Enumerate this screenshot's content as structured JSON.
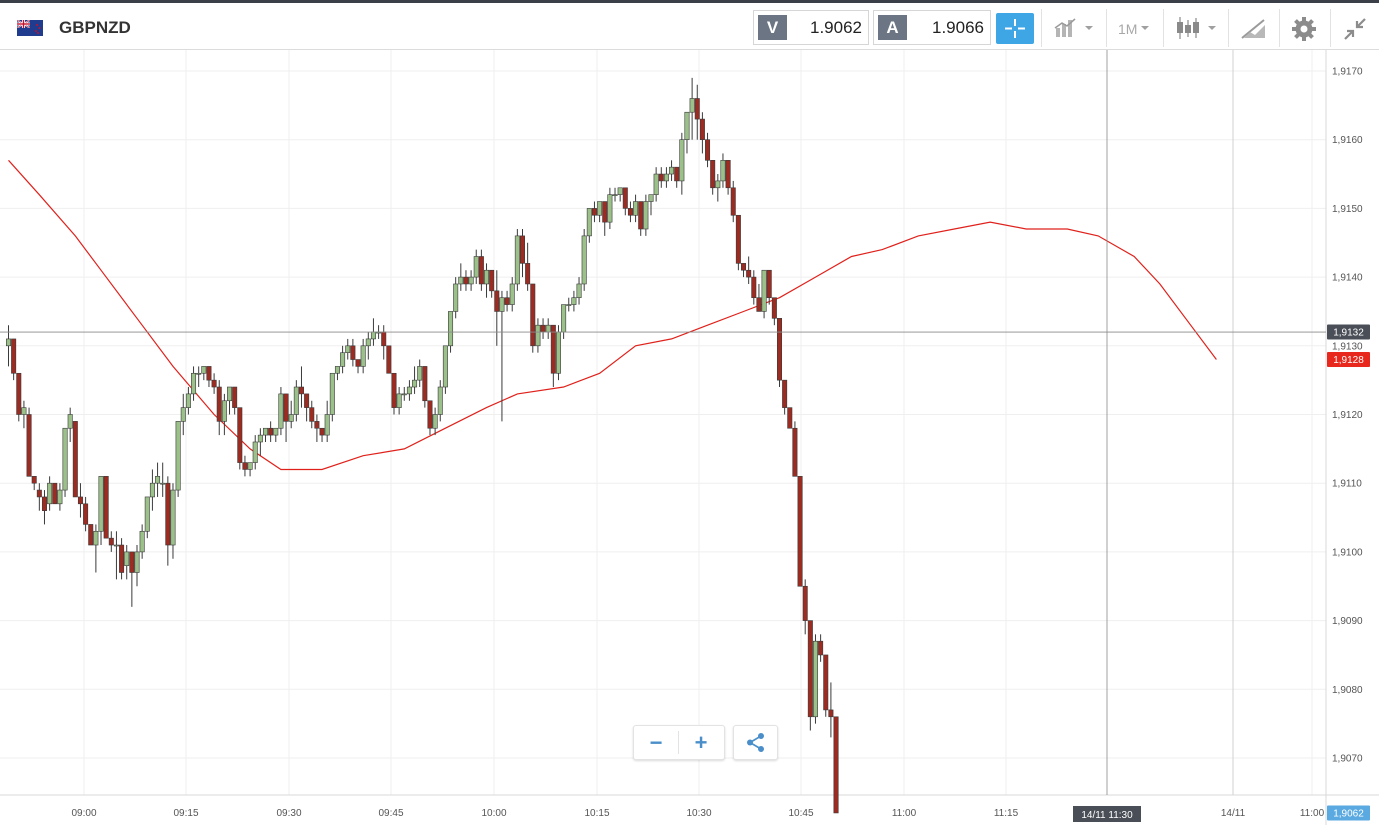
{
  "header": {
    "symbol": "GBPNZD",
    "sell_label": "V",
    "sell_price": "1.9062",
    "buy_label": "A",
    "buy_price": "1.9066",
    "timeframe": "1M",
    "icons": [
      "flag-icon",
      "crosshair-icon",
      "chart-type-icon",
      "candles-icon",
      "draw-icon",
      "settings-icon",
      "collapse-icon"
    ]
  },
  "colors": {
    "up": "#9bc089",
    "down": "#9c2b22",
    "ma": "#e0211b",
    "price_tag": "#e8281c",
    "crosshair_tag": "#4a4f57",
    "current_tag": "#5aa9e0",
    "accent": "#3fa6e6"
  },
  "controls": {
    "zoom_out": "−",
    "zoom_in": "+"
  },
  "chart_data": {
    "type": "candlestick",
    "interval_minutes": 1,
    "y_tick_labels": [
      "1,9170",
      "1,9160",
      "1,9150",
      "1,9140",
      "1,9130",
      "1,9120",
      "1,9110",
      "1,9100",
      "1,9090",
      "1,9080",
      "1,9070"
    ],
    "y_ticks": [
      1.917,
      1.916,
      1.915,
      1.914,
      1.913,
      1.912,
      1.911,
      1.91,
      1.909,
      1.908,
      1.907
    ],
    "ylim": [
      1.90635,
      1.91735
    ],
    "x_tick_labels": [
      "09:00",
      "09:15",
      "09:30",
      "09:45",
      "10:00",
      "10:15",
      "10:30",
      "10:45",
      "11:00",
      "11:15",
      "14/11",
      "11:00"
    ],
    "crosshair": {
      "price_label": "1,9132",
      "price": 1.9132,
      "time_label": "14/11 11:30"
    },
    "ma_label": "1,9128",
    "last_price_label": "1,9062",
    "candles": [
      [
        1.913,
        1.9133,
        1.9127,
        1.9131
      ],
      [
        1.9131,
        1.9131,
        1.9125,
        1.9126
      ],
      [
        1.9126,
        1.9126,
        1.9119,
        1.912
      ],
      [
        1.912,
        1.9122,
        1.9118,
        1.9121
      ],
      [
        1.912,
        1.9121,
        1.9111,
        1.9111
      ],
      [
        1.9111,
        1.9111,
        1.9109,
        1.911
      ],
      [
        1.9109,
        1.911,
        1.9106,
        1.9108
      ],
      [
        1.9108,
        1.9109,
        1.9104,
        1.9106
      ],
      [
        1.9107,
        1.9111,
        1.9106,
        1.911
      ],
      [
        1.911,
        1.911,
        1.9107,
        1.9107
      ],
      [
        1.9107,
        1.911,
        1.9106,
        1.9109
      ],
      [
        1.9109,
        1.9118,
        1.9108,
        1.9118
      ],
      [
        1.9118,
        1.9121,
        1.9116,
        1.912
      ],
      [
        1.9119,
        1.9119,
        1.9108,
        1.9108
      ],
      [
        1.9108,
        1.911,
        1.9105,
        1.9107
      ],
      [
        1.9107,
        1.9108,
        1.9103,
        1.9104
      ],
      [
        1.9104,
        1.9104,
        1.9101,
        1.9101
      ],
      [
        1.9101,
        1.9104,
        1.9097,
        1.9103
      ],
      [
        1.9103,
        1.9111,
        1.9101,
        1.9111
      ],
      [
        1.9111,
        1.9111,
        1.9102,
        1.9102
      ],
      [
        1.9102,
        1.9103,
        1.91,
        1.9101
      ],
      [
        1.9101,
        1.9103,
        1.9096,
        1.9101
      ],
      [
        1.9101,
        1.9102,
        1.9096,
        1.9097
      ],
      [
        1.9098,
        1.9101,
        1.9096,
        1.91
      ],
      [
        1.91,
        1.91,
        1.9092,
        1.9097
      ],
      [
        1.9097,
        1.9101,
        1.9095,
        1.91
      ],
      [
        1.91,
        1.9104,
        1.9099,
        1.9103
      ],
      [
        1.9103,
        1.9108,
        1.9102,
        1.9108
      ],
      [
        1.9108,
        1.9112,
        1.9106,
        1.911
      ],
      [
        1.911,
        1.9113,
        1.9108,
        1.9111
      ],
      [
        1.911,
        1.9113,
        1.9108,
        1.911
      ],
      [
        1.911,
        1.9111,
        1.9098,
        1.9101
      ],
      [
        1.9101,
        1.911,
        1.9099,
        1.9109
      ],
      [
        1.9109,
        1.9119,
        1.9108,
        1.9119
      ],
      [
        1.9119,
        1.9123,
        1.9117,
        1.9121
      ],
      [
        1.9121,
        1.9124,
        1.912,
        1.9123
      ],
      [
        1.9123,
        1.9127,
        1.9122,
        1.9126
      ],
      [
        1.9126,
        1.9127,
        1.9124,
        1.9126
      ],
      [
        1.9126,
        1.9127,
        1.9125,
        1.9127
      ],
      [
        1.9127,
        1.9127,
        1.9124,
        1.9125
      ],
      [
        1.9125,
        1.9126,
        1.9123,
        1.9124
      ],
      [
        1.9124,
        1.9125,
        1.9117,
        1.9119
      ],
      [
        1.9119,
        1.9123,
        1.9117,
        1.9122
      ],
      [
        1.9122,
        1.9124,
        1.912,
        1.9124
      ],
      [
        1.9124,
        1.9124,
        1.912,
        1.9121
      ],
      [
        1.9121,
        1.9121,
        1.9112,
        1.9113
      ],
      [
        1.9113,
        1.9114,
        1.9111,
        1.9112
      ],
      [
        1.9112,
        1.9113,
        1.9111,
        1.9113
      ],
      [
        1.9113,
        1.9117,
        1.9112,
        1.9116
      ],
      [
        1.9116,
        1.9118,
        1.9114,
        1.9117
      ],
      [
        1.9117,
        1.9118,
        1.9116,
        1.9118
      ],
      [
        1.9118,
        1.9119,
        1.9116,
        1.9117
      ],
      [
        1.9117,
        1.9118,
        1.9116,
        1.9118
      ],
      [
        1.9118,
        1.9124,
        1.9117,
        1.9123
      ],
      [
        1.9123,
        1.9123,
        1.9116,
        1.9119
      ],
      [
        1.9119,
        1.9122,
        1.9118,
        1.912
      ],
      [
        1.912,
        1.9125,
        1.9119,
        1.9124
      ],
      [
        1.9124,
        1.9127,
        1.9121,
        1.9123
      ],
      [
        1.9123,
        1.9123,
        1.9119,
        1.9121
      ],
      [
        1.9121,
        1.9122,
        1.9118,
        1.9119
      ],
      [
        1.9119,
        1.912,
        1.9116,
        1.9118
      ],
      [
        1.9118,
        1.9118,
        1.9116,
        1.9117
      ],
      [
        1.9117,
        1.9122,
        1.9116,
        1.912
      ],
      [
        1.912,
        1.9126,
        1.9119,
        1.9126
      ],
      [
        1.9126,
        1.9127,
        1.9125,
        1.9127
      ],
      [
        1.9127,
        1.913,
        1.9126,
        1.9129
      ],
      [
        1.9129,
        1.9131,
        1.9128,
        1.913
      ],
      [
        1.913,
        1.9131,
        1.9127,
        1.9128
      ],
      [
        1.9128,
        1.9128,
        1.9126,
        1.9127
      ],
      [
        1.9127,
        1.9131,
        1.9126,
        1.913
      ],
      [
        1.913,
        1.9132,
        1.9128,
        1.9131
      ],
      [
        1.9131,
        1.9134,
        1.913,
        1.9132
      ],
      [
        1.9132,
        1.9133,
        1.9131,
        1.9132
      ],
      [
        1.9132,
        1.9133,
        1.9128,
        1.913
      ],
      [
        1.913,
        1.913,
        1.9126,
        1.9126
      ],
      [
        1.9126,
        1.9126,
        1.912,
        1.9121
      ],
      [
        1.9121,
        1.9124,
        1.912,
        1.9123
      ],
      [
        1.9123,
        1.9124,
        1.9122,
        1.9123
      ],
      [
        1.9123,
        1.9125,
        1.9122,
        1.9124
      ],
      [
        1.9124,
        1.9127,
        1.9123,
        1.9125
      ],
      [
        1.9125,
        1.9128,
        1.9124,
        1.9127
      ],
      [
        1.9127,
        1.9127,
        1.9121,
        1.9122
      ],
      [
        1.9122,
        1.9122,
        1.9117,
        1.9118
      ],
      [
        1.9118,
        1.9121,
        1.9117,
        1.912
      ],
      [
        1.912,
        1.9125,
        1.9119,
        1.9124
      ],
      [
        1.9124,
        1.913,
        1.9123,
        1.913
      ],
      [
        1.913,
        1.9135,
        1.9129,
        1.9135
      ],
      [
        1.9135,
        1.914,
        1.9134,
        1.9139
      ],
      [
        1.9139,
        1.9142,
        1.9138,
        1.914
      ],
      [
        1.914,
        1.9141,
        1.9138,
        1.9139
      ],
      [
        1.9139,
        1.9141,
        1.9138,
        1.914
      ],
      [
        1.914,
        1.9144,
        1.9139,
        1.9143
      ],
      [
        1.9143,
        1.9144,
        1.9138,
        1.9139
      ],
      [
        1.9139,
        1.9142,
        1.9137,
        1.9141
      ],
      [
        1.9141,
        1.9141,
        1.9137,
        1.9138
      ],
      [
        1.9138,
        1.9141,
        1.913,
        1.9135
      ],
      [
        1.9135,
        1.9138,
        1.9119,
        1.9137
      ],
      [
        1.9137,
        1.9138,
        1.9135,
        1.9136
      ],
      [
        1.9136,
        1.914,
        1.9135,
        1.9139
      ],
      [
        1.9139,
        1.9147,
        1.9138,
        1.9146
      ],
      [
        1.9146,
        1.9147,
        1.914,
        1.9142
      ],
      [
        1.9142,
        1.9145,
        1.9138,
        1.9139
      ],
      [
        1.9139,
        1.9139,
        1.9129,
        1.913
      ],
      [
        1.913,
        1.9134,
        1.9129,
        1.9133
      ],
      [
        1.9133,
        1.9134,
        1.9131,
        1.9132
      ],
      [
        1.9132,
        1.9134,
        1.9131,
        1.9133
      ],
      [
        1.9133,
        1.9133,
        1.9124,
        1.9126
      ],
      [
        1.9126,
        1.9133,
        1.9125,
        1.9132
      ],
      [
        1.9132,
        1.9136,
        1.9131,
        1.9136
      ],
      [
        1.9136,
        1.9137,
        1.9135,
        1.9136
      ],
      [
        1.9136,
        1.9138,
        1.9135,
        1.9137
      ],
      [
        1.9137,
        1.914,
        1.9136,
        1.9139
      ],
      [
        1.9139,
        1.9147,
        1.9138,
        1.9146
      ],
      [
        1.9146,
        1.915,
        1.9145,
        1.915
      ],
      [
        1.915,
        1.9151,
        1.9148,
        1.9149
      ],
      [
        1.9149,
        1.9151,
        1.9148,
        1.9151
      ],
      [
        1.9151,
        1.9151,
        1.9146,
        1.9148
      ],
      [
        1.9148,
        1.9153,
        1.9147,
        1.9152
      ],
      [
        1.9152,
        1.9153,
        1.9151,
        1.9152
      ],
      [
        1.9152,
        1.9153,
        1.9151,
        1.9153
      ],
      [
        1.9153,
        1.9153,
        1.9149,
        1.915
      ],
      [
        1.915,
        1.9151,
        1.9148,
        1.9149
      ],
      [
        1.9149,
        1.9152,
        1.9148,
        1.9151
      ],
      [
        1.9151,
        1.9151,
        1.9146,
        1.9147
      ],
      [
        1.9147,
        1.9152,
        1.9146,
        1.9151
      ],
      [
        1.9151,
        1.9152,
        1.9149,
        1.9152
      ],
      [
        1.9152,
        1.9156,
        1.9151,
        1.9155
      ],
      [
        1.9155,
        1.9156,
        1.9153,
        1.9154
      ],
      [
        1.9154,
        1.9156,
        1.9153,
        1.9155
      ],
      [
        1.9155,
        1.9157,
        1.9154,
        1.9156
      ],
      [
        1.9156,
        1.9156,
        1.9153,
        1.9154
      ],
      [
        1.9154,
        1.9161,
        1.9152,
        1.916
      ],
      [
        1.916,
        1.9164,
        1.9158,
        1.9164
      ],
      [
        1.9164,
        1.9169,
        1.916,
        1.9166
      ],
      [
        1.9166,
        1.9168,
        1.916,
        1.9163
      ],
      [
        1.9163,
        1.9164,
        1.9158,
        1.916
      ],
      [
        1.916,
        1.9161,
        1.9156,
        1.9157
      ],
      [
        1.9157,
        1.9157,
        1.9152,
        1.9153
      ],
      [
        1.9153,
        1.9155,
        1.9151,
        1.9154
      ],
      [
        1.9154,
        1.9158,
        1.9153,
        1.9157
      ],
      [
        1.9157,
        1.9157,
        1.9152,
        1.9153
      ],
      [
        1.9153,
        1.9154,
        1.9148,
        1.9149
      ],
      [
        1.9149,
        1.9149,
        1.9141,
        1.9142
      ],
      [
        1.9142,
        1.9142,
        1.914,
        1.9141
      ],
      [
        1.9141,
        1.9143,
        1.9139,
        1.914
      ],
      [
        1.914,
        1.9141,
        1.9136,
        1.9137
      ],
      [
        1.9137,
        1.9139,
        1.9135,
        1.9135
      ],
      [
        1.9135,
        1.9141,
        1.9134,
        1.9141
      ],
      [
        1.9141,
        1.9141,
        1.9136,
        1.9137
      ],
      [
        1.9137,
        1.9137,
        1.9133,
        1.9134
      ],
      [
        1.9134,
        1.9134,
        1.9124,
        1.9125
      ],
      [
        1.9125,
        1.9125,
        1.912,
        1.9121
      ],
      [
        1.9121,
        1.9121,
        1.9118,
        1.9118
      ],
      [
        1.9118,
        1.9119,
        1.9111,
        1.9111
      ],
      [
        1.9111,
        1.9111,
        1.9095,
        1.9095
      ],
      [
        1.9095,
        1.9096,
        1.9088,
        1.909
      ],
      [
        1.909,
        1.909,
        1.9074,
        1.9076
      ],
      [
        1.9076,
        1.9088,
        1.9075,
        1.9087
      ],
      [
        1.9087,
        1.9088,
        1.9084,
        1.9085
      ],
      [
        1.9085,
        1.9085,
        1.9076,
        1.9077
      ],
      [
        1.9077,
        1.9081,
        1.9073,
        1.9076
      ],
      [
        1.9076,
        1.9076,
        1.9062,
        1.9062
      ]
    ],
    "ma": [
      [
        0,
        1.9157
      ],
      [
        6,
        1.9152
      ],
      [
        13,
        1.9146
      ],
      [
        18,
        1.9141
      ],
      [
        25,
        1.9134
      ],
      [
        32,
        1.9127
      ],
      [
        40,
        1.912
      ],
      [
        47,
        1.9115
      ],
      [
        53,
        1.9112
      ],
      [
        61,
        1.9112
      ],
      [
        69,
        1.9114
      ],
      [
        77,
        1.9115
      ],
      [
        85,
        1.9118
      ],
      [
        93,
        1.9121
      ],
      [
        99,
        1.9123
      ],
      [
        108,
        1.9124
      ],
      [
        115,
        1.9126
      ],
      [
        122,
        1.913
      ],
      [
        129,
        1.9131
      ],
      [
        136,
        1.9133
      ],
      [
        143,
        1.9135
      ],
      [
        150,
        1.9137
      ],
      [
        157,
        1.914
      ],
      [
        164,
        1.9143
      ],
      [
        170,
        1.9144
      ],
      [
        177,
        1.9146
      ],
      [
        184,
        1.9147
      ],
      [
        191,
        1.9148
      ],
      [
        198,
        1.9147
      ],
      [
        206,
        1.9147
      ],
      [
        212,
        1.9146
      ],
      [
        219,
        1.9143
      ],
      [
        224,
        1.9139
      ],
      [
        230,
        1.9133
      ],
      [
        235,
        1.9128
      ]
    ]
  }
}
